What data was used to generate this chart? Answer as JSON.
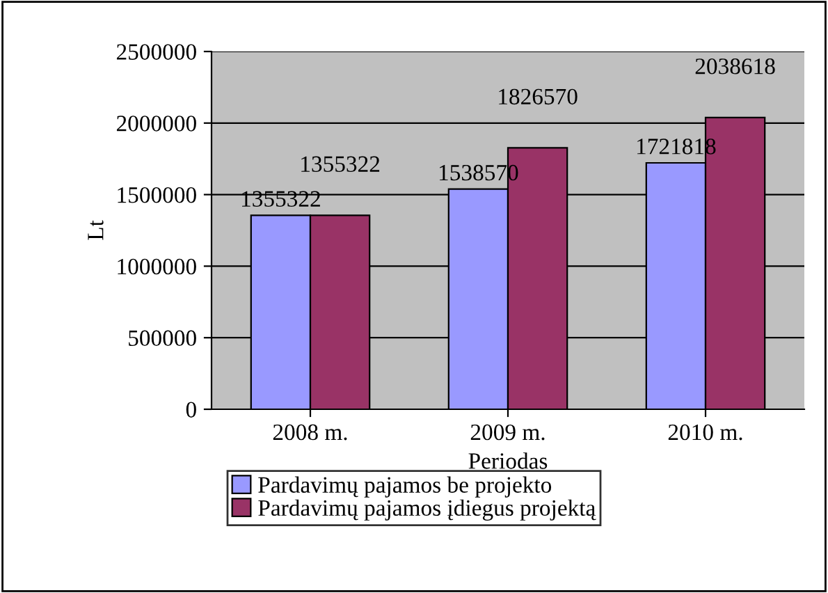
{
  "chart_data": {
    "type": "bar",
    "xlabel": "Periodas",
    "ylabel": "Lt",
    "categories": [
      "2008 m.",
      "2009 m.",
      "2010 m."
    ],
    "series": [
      {
        "name": "Pardavimų pajamos be projekto",
        "color": "#9999ff",
        "values": [
          1355322,
          1538570,
          1721818
        ]
      },
      {
        "name": "Pardavimų pajamos įdiegus projektą",
        "color": "#993366",
        "values": [
          1355322,
          1826570,
          2038618
        ]
      }
    ],
    "ylim": [
      0,
      2500000
    ],
    "yticks": [
      0,
      500000,
      1000000,
      1500000,
      2000000,
      2500000
    ],
    "grid": "y",
    "legend": "bottom",
    "data_labels": true
  }
}
